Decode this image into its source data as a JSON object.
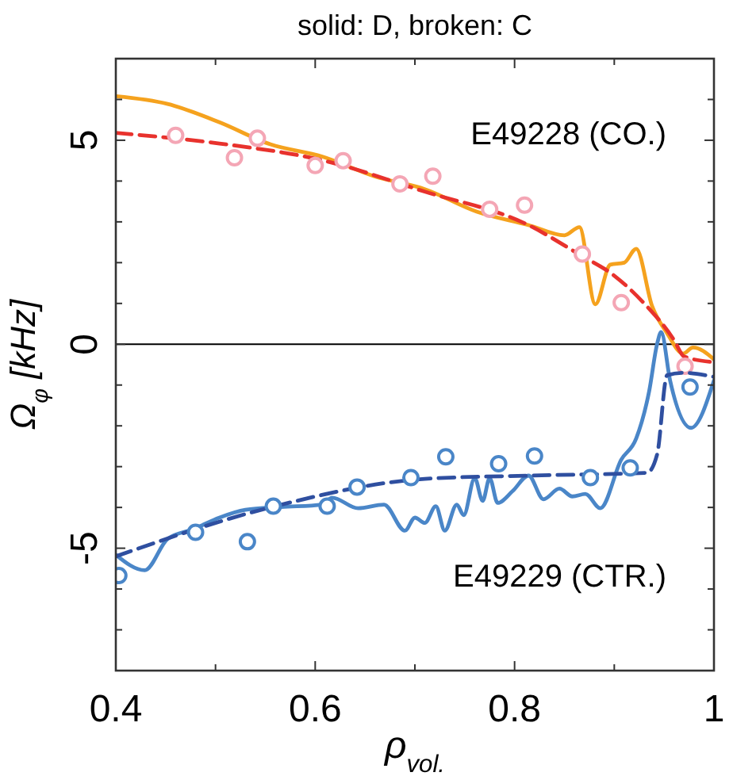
{
  "chart_data": {
    "type": "line",
    "title": "solid: D, broken: C",
    "xlabel": "ρ$_{vol.}$",
    "ylabel": "Ω$_{φ}$ [kHz]",
    "xlim": [
      0.4,
      1
    ],
    "ylim": [
      -8,
      7
    ],
    "xticks": [
      0.4,
      {
        "value": 0.5,
        "label": null
      },
      0.6,
      {
        "value": 0.7,
        "label": null
      },
      0.8,
      {
        "value": 0.9,
        "label": null
      },
      1
    ],
    "yticks": [
      {
        "value": -8,
        "label": null
      },
      {
        "value": -7,
        "label": null
      },
      {
        "value": -6,
        "label": null
      },
      -5,
      {
        "value": -4,
        "label": null
      },
      {
        "value": -3,
        "label": null
      },
      {
        "value": -2,
        "label": null
      },
      {
        "value": -1,
        "label": null
      },
      0,
      {
        "value": 1,
        "label": null
      },
      {
        "value": 2,
        "label": null
      },
      {
        "value": 3,
        "label": null
      },
      {
        "value": 4,
        "label": null
      },
      5,
      {
        "value": 6,
        "label": null
      },
      {
        "value": 7,
        "label": null
      }
    ],
    "grid": false,
    "ref_lines": [
      {
        "axis": "y",
        "value": 0,
        "color": "#000000"
      }
    ],
    "annotations": [
      "E49228 (CO.)",
      "E49229 (CTR.)"
    ],
    "series": [
      {
        "color": "#f5a21e",
        "line_style": "solid",
        "marker": "none",
        "x": [
          0.4,
          0.452,
          0.504,
          0.555,
          0.607,
          0.659,
          0.71,
          0.762,
          0.814,
          0.85,
          0.865,
          0.881,
          0.896,
          0.91,
          0.922,
          0.938,
          0.953,
          0.969,
          0.979,
          1.0
        ],
        "values": [
          6.08,
          5.89,
          5.44,
          4.9,
          4.6,
          4.12,
          3.8,
          3.25,
          2.92,
          2.67,
          2.87,
          0.98,
          1.95,
          2.0,
          2.34,
          0.93,
          0.27,
          -0.23,
          -0.08,
          -0.37
        ]
      },
      {
        "color": "#e8322d",
        "line_style": "dashed",
        "marker": "none",
        "x": [
          0.4,
          0.504,
          0.607,
          0.71,
          0.814,
          0.865,
          0.9,
          0.93,
          0.96,
          0.97,
          1.0
        ],
        "values": [
          5.18,
          4.92,
          4.51,
          3.74,
          2.92,
          2.2,
          1.68,
          1.0,
          0.1,
          -0.3,
          -0.44
        ]
      },
      {
        "type": "scatter",
        "color": "#f4a6b5",
        "marker": "circle",
        "x": [
          0.46,
          0.519,
          0.542,
          0.6,
          0.628,
          0.685,
          0.718,
          0.775,
          0.81,
          0.868,
          0.907,
          0.971
        ],
        "values": [
          5.12,
          4.57,
          5.05,
          4.38,
          4.5,
          3.93,
          4.12,
          3.31,
          3.41,
          2.21,
          1.02,
          -0.54
        ]
      },
      {
        "color": "#4a86c8",
        "line_style": "solid",
        "marker": "none",
        "x": [
          0.4,
          0.429,
          0.452,
          0.478,
          0.504,
          0.53,
          0.566,
          0.607,
          0.617,
          0.643,
          0.669,
          0.69,
          0.7,
          0.71,
          0.721,
          0.73,
          0.742,
          0.749,
          0.76,
          0.768,
          0.775,
          0.783,
          0.798,
          0.814,
          0.829,
          0.845,
          0.858,
          0.871,
          0.886,
          0.907,
          0.922,
          0.935,
          0.943,
          0.947,
          0.956,
          0.977,
          1.0
        ],
        "values": [
          -5.16,
          -5.54,
          -4.77,
          -4.53,
          -4.25,
          -4.06,
          -3.99,
          -3.93,
          -3.76,
          -4.02,
          -3.93,
          -4.57,
          -4.25,
          -4.38,
          -3.97,
          -4.57,
          -3.93,
          -4.19,
          -3.28,
          -3.84,
          -3.28,
          -3.89,
          -3.6,
          -3.22,
          -3.8,
          -3.54,
          -3.73,
          -3.67,
          -4.02,
          -2.83,
          -2.31,
          -1.15,
          0.01,
          0.3,
          -0.89,
          -2.05,
          -0.89
        ]
      },
      {
        "color": "#2f4fa0",
        "line_style": "dashed",
        "marker": "none",
        "x": [
          0.4,
          0.555,
          0.71,
          0.814,
          0.933,
          0.943,
          0.953,
          0.969,
          1.0
        ],
        "values": [
          -5.2,
          -4.0,
          -3.3,
          -3.22,
          -3.15,
          -2.7,
          -0.76,
          -0.7,
          -0.8
        ]
      },
      {
        "type": "scatter",
        "color": "#4a86c8",
        "marker": "circle",
        "x": [
          0.403,
          0.48,
          0.532,
          0.558,
          0.612,
          0.642,
          0.696,
          0.731,
          0.784,
          0.82,
          0.876,
          0.916,
          0.976
        ],
        "values": [
          -5.67,
          -4.61,
          -4.84,
          -3.97,
          -3.97,
          -3.5,
          -3.27,
          -2.76,
          -2.93,
          -2.74,
          -3.27,
          -3.03,
          -1.05
        ]
      }
    ]
  }
}
